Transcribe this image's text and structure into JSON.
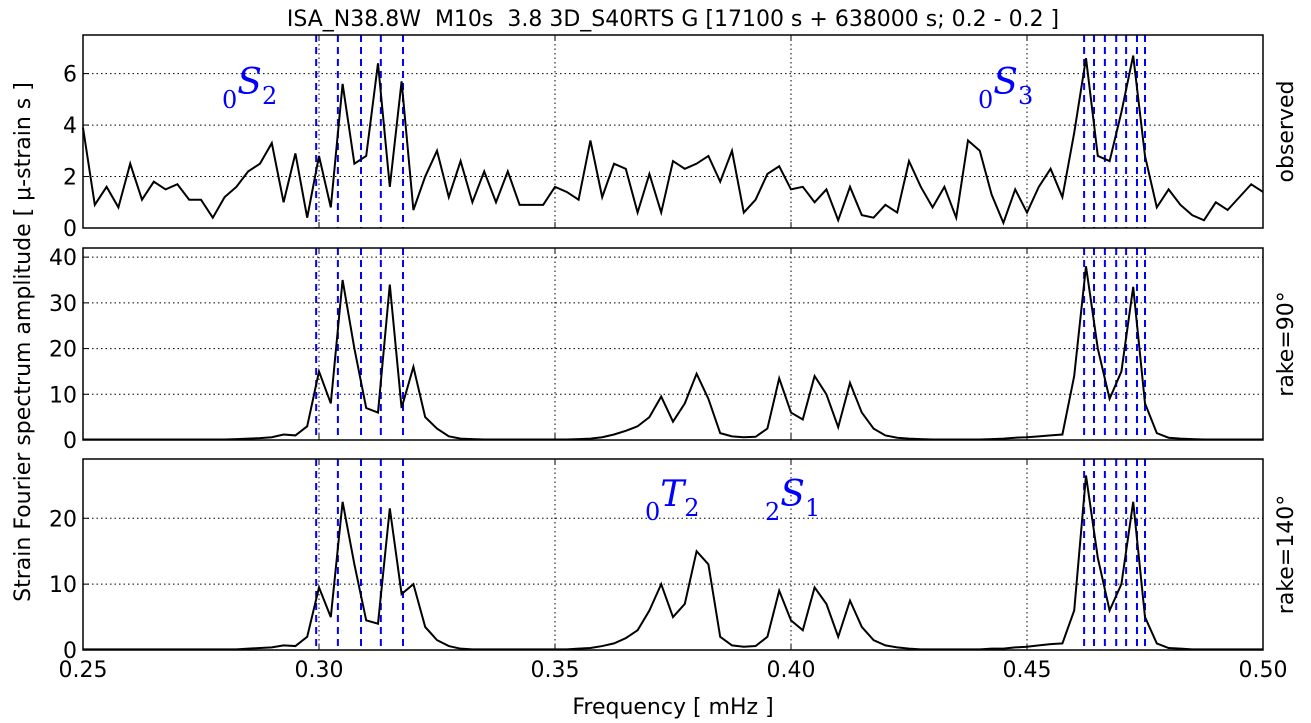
{
  "chart_data": {
    "type": "line",
    "title": "ISA_N38.8W  M10s  3.8 3D_S40RTS G [17100 s + 638000 s; 0.2 - 0.2 ]",
    "xlabel": "Frequency [ mHz ]",
    "ylabel": "Strain Fourier spectrum amplitude [ μ-strain s ]",
    "xlim": [
      0.25,
      0.5
    ],
    "xticks": [
      0.25,
      {
        "value": 0.3,
        "label": "0.30"
      },
      0.35,
      {
        "value": 0.4,
        "label": "0.40"
      },
      0.45,
      {
        "value": 0.5,
        "label": "0.50"
      }
    ],
    "grid": true,
    "mode_lines": {
      "color": "#0000ff",
      "x": [
        0.2994,
        0.304,
        0.3089,
        0.3131,
        0.3178,
        0.4621,
        0.4642,
        0.4665,
        0.4689,
        0.471,
        0.4733,
        0.475
      ]
    },
    "x": [
      0.25,
      0.2525,
      0.255,
      0.2575,
      0.26,
      0.2625,
      0.265,
      0.2675,
      0.27,
      0.2725,
      0.275,
      0.2775,
      0.28,
      0.2825,
      0.285,
      0.2875,
      0.29,
      0.2925,
      0.295,
      0.2975,
      0.3,
      0.3025,
      0.305,
      0.3075,
      0.31,
      0.3125,
      0.315,
      0.3175,
      0.32,
      0.3225,
      0.325,
      0.3275,
      0.33,
      0.3325,
      0.335,
      0.3375,
      0.34,
      0.3425,
      0.345,
      0.3475,
      0.35,
      0.3525,
      0.355,
      0.3575,
      0.36,
      0.3625,
      0.365,
      0.3675,
      0.37,
      0.3725,
      0.375,
      0.3775,
      0.38,
      0.3825,
      0.385,
      0.3875,
      0.39,
      0.3925,
      0.395,
      0.3975,
      0.4,
      0.4025,
      0.405,
      0.4075,
      0.41,
      0.4125,
      0.415,
      0.4175,
      0.42,
      0.4225,
      0.425,
      0.4275,
      0.43,
      0.4325,
      0.435,
      0.4375,
      0.44,
      0.4425,
      0.445,
      0.4475,
      0.45,
      0.4525,
      0.455,
      0.4575,
      0.46,
      0.4625,
      0.465,
      0.4675,
      0.47,
      0.4725,
      0.475,
      0.4775,
      0.48,
      0.4825,
      0.485,
      0.4875,
      0.49,
      0.4925,
      0.495,
      0.4975,
      0.5
    ],
    "panels": [
      {
        "ylim": [
          0,
          7.5
        ],
        "yticks": [
          0,
          2,
          4,
          6
        ],
        "series": [
          {
            "name": "observed",
            "color": "#000000",
            "values": [
              3.9,
              0.9,
              1.6,
              0.8,
              2.5,
              1.1,
              1.8,
              1.5,
              1.7,
              1.1,
              1.1,
              0.4,
              1.2,
              1.6,
              2.2,
              2.5,
              3.3,
              1.0,
              2.9,
              0.4,
              2.8,
              0.8,
              5.6,
              2.5,
              2.8,
              6.4,
              1.6,
              5.7,
              0.7,
              2.0,
              3.0,
              1.2,
              2.6,
              1.0,
              2.2,
              1.0,
              2.2,
              0.9,
              0.9,
              0.9,
              1.6,
              1.4,
              1.1,
              3.4,
              1.2,
              2.5,
              2.3,
              0.6,
              2.1,
              0.6,
              2.6,
              2.3,
              2.5,
              2.8,
              1.8,
              3.0,
              0.6,
              1.1,
              2.1,
              2.4,
              1.5,
              1.6,
              1.0,
              1.5,
              0.3,
              1.6,
              0.5,
              0.4,
              0.9,
              0.6,
              2.6,
              1.6,
              0.8,
              1.6,
              0.4,
              3.4,
              3.0,
              1.3,
              0.2,
              1.5,
              0.6,
              1.6,
              2.3,
              1.2,
              3.7,
              6.6,
              2.8,
              2.6,
              4.5,
              6.7,
              2.8,
              0.8,
              1.5,
              0.9,
              0.5,
              0.3,
              1.0,
              0.7,
              1.2,
              1.7,
              1.4
            ]
          }
        ],
        "annotations": [
          {
            "left": "0",
            "main": "S",
            "sub": "2"
          },
          {
            "left": "0",
            "main": "S",
            "sub": "3"
          }
        ]
      },
      {
        "ylim": [
          0,
          42
        ],
        "yticks": [
          0,
          10,
          20,
          30,
          40
        ],
        "series": [
          {
            "name": "rake=90°",
            "color": "#000000",
            "values": [
              0.1,
              0.1,
              0.1,
              0.1,
              0.1,
              0.1,
              0.1,
              0.1,
              0.1,
              0.1,
              0.1,
              0.1,
              0.1,
              0.2,
              0.3,
              0.4,
              0.6,
              1.2,
              1.0,
              3.0,
              15,
              8,
              35,
              20,
              7,
              6,
              34,
              7,
              16,
              5,
              2.5,
              0.8,
              0.3,
              0.2,
              0.1,
              0.1,
              0.1,
              0.1,
              0.1,
              0.1,
              0.1,
              0.1,
              0.2,
              0.3,
              0.6,
              1.2,
              2.0,
              3.0,
              5.0,
              9.5,
              4.0,
              8.0,
              14.5,
              9.0,
              1.5,
              0.8,
              0.6,
              0.7,
              2.5,
              13.5,
              6.0,
              4.5,
              14.0,
              10.0,
              2.8,
              12.5,
              6.0,
              2.5,
              1.0,
              0.5,
              0.3,
              0.2,
              0.1,
              0.1,
              0.1,
              0.1,
              0.1,
              0.2,
              0.3,
              0.5,
              0.6,
              0.8,
              1.0,
              1.2,
              14,
              38,
              20,
              9,
              15,
              33.5,
              8,
              1.5,
              0.5,
              0.3,
              0.2,
              0.1,
              0.1,
              0.1,
              0.1,
              0.1,
              0.1
            ]
          }
        ],
        "annotations": []
      },
      {
        "ylim": [
          0,
          29
        ],
        "yticks": [
          0,
          10,
          20
        ],
        "series": [
          {
            "name": "rake=140°",
            "color": "#000000",
            "values": [
              0.1,
              0.1,
              0.1,
              0.1,
              0.1,
              0.1,
              0.1,
              0.1,
              0.1,
              0.1,
              0.1,
              0.1,
              0.1,
              0.1,
              0.2,
              0.3,
              0.4,
              0.7,
              0.6,
              2.0,
              9.5,
              5.0,
              22.5,
              13,
              4.5,
              4.0,
              21.5,
              8.5,
              10.0,
              3.5,
              1.5,
              0.6,
              0.2,
              0.1,
              0.1,
              0.1,
              0.1,
              0.1,
              0.1,
              0.1,
              0.1,
              0.1,
              0.2,
              0.3,
              0.6,
              1.0,
              1.8,
              3.0,
              6.0,
              10.0,
              5.0,
              7.0,
              15.0,
              13.0,
              2.0,
              0.7,
              0.5,
              0.6,
              2.0,
              9.0,
              4.5,
              3.0,
              9.5,
              7.0,
              2.0,
              7.5,
              3.5,
              1.5,
              0.7,
              0.4,
              0.2,
              0.1,
              0.1,
              0.1,
              0.1,
              0.1,
              0.1,
              0.2,
              0.2,
              0.4,
              0.5,
              0.7,
              0.9,
              1.0,
              6.0,
              26.5,
              14,
              6,
              10,
              22.5,
              5.0,
              1.0,
              0.3,
              0.2,
              0.1,
              0.1,
              0.1,
              0.1,
              0.1,
              0.1,
              0.1
            ]
          }
        ],
        "annotations": [
          {
            "left": "0",
            "main": "T",
            "sub": "2"
          },
          {
            "left": "2",
            "main": "S",
            "sub": "1"
          }
        ]
      }
    ]
  }
}
